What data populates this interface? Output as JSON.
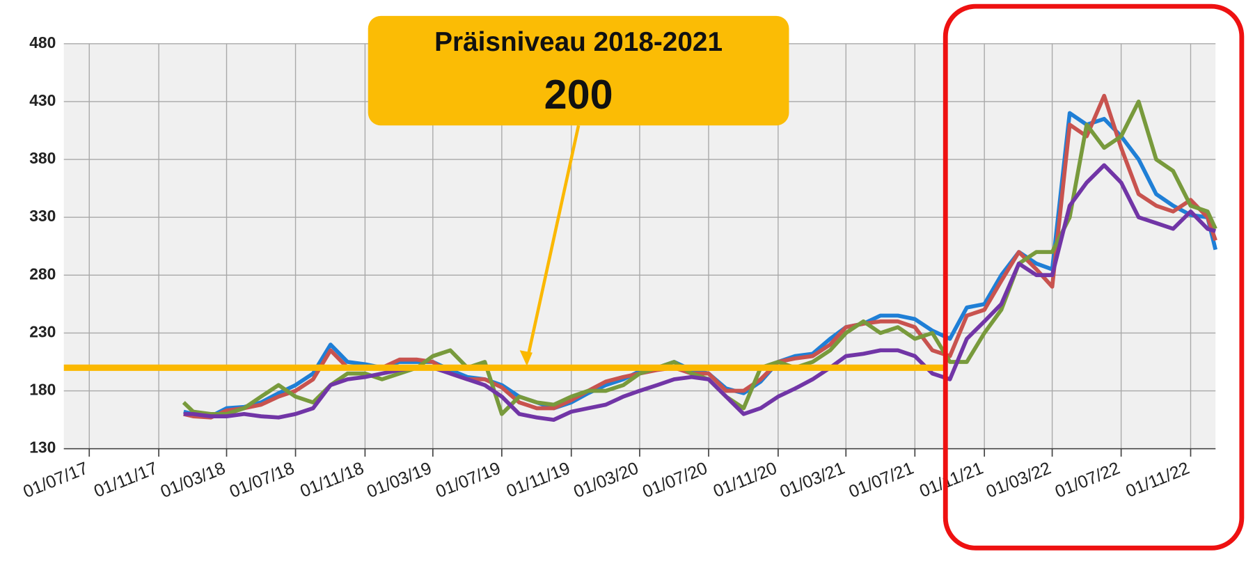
{
  "chart_data": {
    "type": "line",
    "x": [
      "2017-12-15",
      "2018-01-01",
      "2018-02-01",
      "2018-03-01",
      "2018-04-01",
      "2018-05-01",
      "2018-06-01",
      "2018-07-01",
      "2018-08-01",
      "2018-09-01",
      "2018-10-01",
      "2018-11-01",
      "2018-12-01",
      "2019-01-01",
      "2019-02-01",
      "2019-03-01",
      "2019-04-01",
      "2019-05-01",
      "2019-06-01",
      "2019-07-01",
      "2019-08-01",
      "2019-09-01",
      "2019-10-01",
      "2019-11-01",
      "2019-12-01",
      "2020-01-01",
      "2020-02-01",
      "2020-03-01",
      "2020-04-01",
      "2020-05-01",
      "2020-06-01",
      "2020-07-01",
      "2020-08-01",
      "2020-09-01",
      "2020-10-01",
      "2020-11-01",
      "2020-12-01",
      "2021-01-01",
      "2021-02-01",
      "2021-03-01",
      "2021-04-01",
      "2021-05-01",
      "2021-06-01",
      "2021-07-01",
      "2021-08-01",
      "2021-09-01",
      "2021-10-01",
      "2021-11-01",
      "2021-12-01",
      "2022-01-01",
      "2022-02-01",
      "2022-03-01",
      "2022-04-01",
      "2022-05-01",
      "2022-06-01",
      "2022-07-01",
      "2022-08-01",
      "2022-09-01",
      "2022-10-01",
      "2022-11-01",
      "2022-12-01",
      "2022-12-15"
    ],
    "series": [
      {
        "color": "#1f7fd6",
        "values": [
          162,
          160,
          158,
          165,
          166,
          170,
          178,
          185,
          195,
          220,
          205,
          203,
          200,
          205,
          205,
          205,
          198,
          192,
          190,
          185,
          175,
          170,
          165,
          170,
          178,
          185,
          190,
          197,
          200,
          205,
          198,
          195,
          182,
          178,
          188,
          205,
          210,
          212,
          225,
          235,
          238,
          245,
          245,
          242,
          232,
          225,
          252,
          255,
          280,
          300,
          290,
          285,
          420,
          410,
          415,
          400,
          380,
          350,
          340,
          332,
          330,
          302
        ]
      },
      {
        "color": "#c8534f",
        "values": [
          160,
          158,
          157,
          163,
          165,
          168,
          175,
          180,
          190,
          215,
          200,
          200,
          200,
          207,
          207,
          205,
          195,
          190,
          190,
          183,
          170,
          165,
          165,
          172,
          180,
          188,
          192,
          195,
          198,
          200,
          195,
          195,
          180,
          180,
          190,
          205,
          208,
          210,
          220,
          235,
          238,
          240,
          240,
          235,
          215,
          210,
          245,
          250,
          275,
          300,
          285,
          270,
          410,
          400,
          435,
          390,
          350,
          340,
          335,
          345,
          330,
          310
        ]
      },
      {
        "color": "#789a3c",
        "values": [
          170,
          162,
          160,
          160,
          165,
          175,
          185,
          175,
          170,
          185,
          195,
          195,
          190,
          195,
          200,
          210,
          215,
          200,
          205,
          160,
          175,
          170,
          168,
          175,
          180,
          180,
          185,
          195,
          200,
          205,
          195,
          190,
          175,
          165,
          200,
          205,
          200,
          205,
          215,
          230,
          240,
          230,
          235,
          225,
          230,
          205,
          205,
          230,
          250,
          290,
          300,
          300,
          330,
          410,
          390,
          400,
          430,
          380,
          370,
          340,
          335,
          320
        ]
      },
      {
        "color": "#7135a6",
        "values": [
          160,
          160,
          158,
          158,
          160,
          158,
          157,
          160,
          165,
          185,
          190,
          192,
          195,
          198,
          200,
          200,
          195,
          190,
          185,
          175,
          160,
          157,
          155,
          162,
          165,
          168,
          175,
          180,
          185,
          190,
          192,
          190,
          175,
          160,
          165,
          175,
          182,
          190,
          200,
          210,
          212,
          215,
          215,
          210,
          195,
          190,
          225,
          240,
          255,
          290,
          280,
          280,
          340,
          360,
          375,
          360,
          330,
          325,
          320,
          335,
          320,
          318
        ]
      }
    ],
    "xlim": [
      "2017-07-01",
      "2022-12-15"
    ],
    "xticks": [
      {
        "value": "2017-07-01",
        "label": "01/07/17"
      },
      {
        "value": "2017-11-01",
        "label": "01/11/17"
      },
      {
        "value": "2018-03-01",
        "label": "01/03/18"
      },
      {
        "value": "2018-07-01",
        "label": "01/07/18"
      },
      {
        "value": "2018-11-01",
        "label": "01/11/18"
      },
      {
        "value": "2019-03-01",
        "label": "01/03/19"
      },
      {
        "value": "2019-07-01",
        "label": "01/07/19"
      },
      {
        "value": "2019-11-01",
        "label": "01/11/19"
      },
      {
        "value": "2020-03-01",
        "label": "01/03/20"
      },
      {
        "value": "2020-07-01",
        "label": "01/07/20"
      },
      {
        "value": "2020-11-01",
        "label": "01/11/20"
      },
      {
        "value": "2021-03-01",
        "label": "01/03/21"
      },
      {
        "value": "2021-07-01",
        "label": "01/07/21"
      },
      {
        "value": "2021-11-01",
        "label": "01/11/21"
      },
      {
        "value": "2022-03-01",
        "label": "01/03/22"
      },
      {
        "value": "2022-07-01",
        "label": "01/07/22"
      },
      {
        "value": "2022-11-01",
        "label": "01/11/22"
      }
    ],
    "ylim": [
      130,
      480
    ],
    "yticks": [
      130,
      180,
      230,
      280,
      330,
      380,
      430,
      480
    ],
    "grid": true,
    "annotation": {
      "text": "Präisniveau 2018-2021",
      "value": 200,
      "color": "#fbb800"
    }
  }
}
